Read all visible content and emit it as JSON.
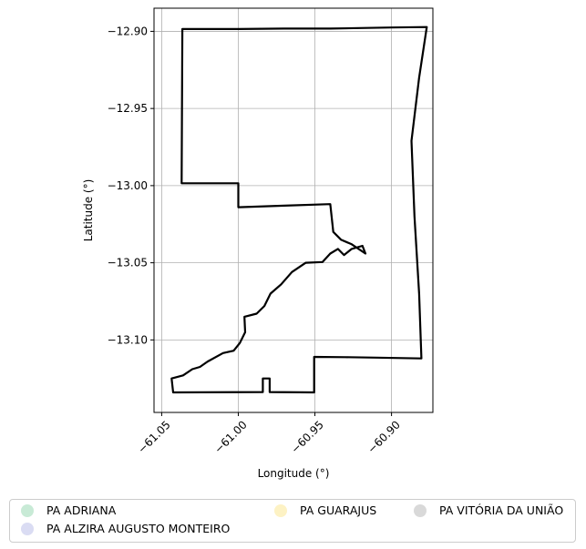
{
  "chart_data": {
    "type": "map",
    "title": "",
    "xlabel": "Longitude (°)",
    "ylabel": "Latitude (°)",
    "xlim": [
      -61.055,
      -60.873
    ],
    "ylim": [
      -13.147,
      -12.885
    ],
    "grid": true,
    "legend_position": "bottom",
    "x_ticks": [
      -61.05,
      -61.0,
      -60.95,
      -60.9
    ],
    "x_tick_labels": [
      "−61.05",
      "−61.00",
      "−60.95",
      "−60.90"
    ],
    "y_ticks": [
      -12.9,
      -12.95,
      -13.0,
      -13.05,
      -13.1
    ],
    "y_tick_labels": [
      "−12.90",
      "−12.95",
      "−13.00",
      "−13.05",
      "−13.10"
    ],
    "legend": [
      {
        "label": "PA ADRIANA",
        "color": "#c8ead6"
      },
      {
        "label": "PA ALZIRA AUGUSTO MONTEIRO",
        "color": "#dadcf3"
      },
      {
        "label": "PA GUARAJUS",
        "color": "#fdf2c4"
      },
      {
        "label": "PA VITÓRIA DA UNIÃO",
        "color": "#d9d9d9"
      }
    ],
    "boundary": [
      [
        -61.0365,
        -12.8985
      ],
      [
        -61.0,
        -12.8985
      ],
      [
        -60.97,
        -12.8982
      ],
      [
        -60.94,
        -12.8982
      ],
      [
        -60.9,
        -12.8975
      ],
      [
        -60.877,
        -12.8972
      ],
      [
        -60.882,
        -12.93
      ],
      [
        -60.887,
        -12.971
      ],
      [
        -60.885,
        -13.02
      ],
      [
        -60.882,
        -13.07
      ],
      [
        -60.8805,
        -13.112
      ],
      [
        -60.91,
        -13.1115
      ],
      [
        -60.93,
        -13.1112
      ],
      [
        -60.9505,
        -13.111
      ],
      [
        -60.9505,
        -13.134
      ],
      [
        -60.9795,
        -13.1338
      ],
      [
        -60.9795,
        -13.125
      ],
      [
        -60.984,
        -13.125
      ],
      [
        -60.984,
        -13.1338
      ],
      [
        -61.0425,
        -13.134
      ],
      [
        -61.0435,
        -13.125
      ],
      [
        -61.036,
        -13.123
      ],
      [
        -61.03,
        -13.119
      ],
      [
        -61.025,
        -13.1175
      ],
      [
        -61.02,
        -13.114
      ],
      [
        -61.01,
        -13.1085
      ],
      [
        -61.003,
        -13.107
      ],
      [
        -60.999,
        -13.102
      ],
      [
        -60.9955,
        -13.095
      ],
      [
        -60.996,
        -13.085
      ],
      [
        -60.988,
        -13.083
      ],
      [
        -60.983,
        -13.078
      ],
      [
        -60.979,
        -13.07
      ],
      [
        -60.972,
        -13.064
      ],
      [
        -60.965,
        -13.056
      ],
      [
        -60.956,
        -13.05
      ],
      [
        -60.945,
        -13.0495
      ],
      [
        -60.94,
        -13.044
      ],
      [
        -60.935,
        -13.041
      ],
      [
        -60.931,
        -13.045
      ],
      [
        -60.926,
        -13.041
      ],
      [
        -60.919,
        -13.039
      ],
      [
        -60.917,
        -13.044
      ],
      [
        -60.926,
        -13.038
      ],
      [
        -60.933,
        -13.035
      ],
      [
        -60.938,
        -13.03
      ],
      [
        -60.94,
        -13.012
      ],
      [
        -60.97,
        -13.013
      ],
      [
        -61.0,
        -13.014
      ],
      [
        -61.0,
        -12.9985
      ],
      [
        -61.037,
        -12.9985
      ],
      [
        -61.0365,
        -12.8985
      ]
    ]
  }
}
